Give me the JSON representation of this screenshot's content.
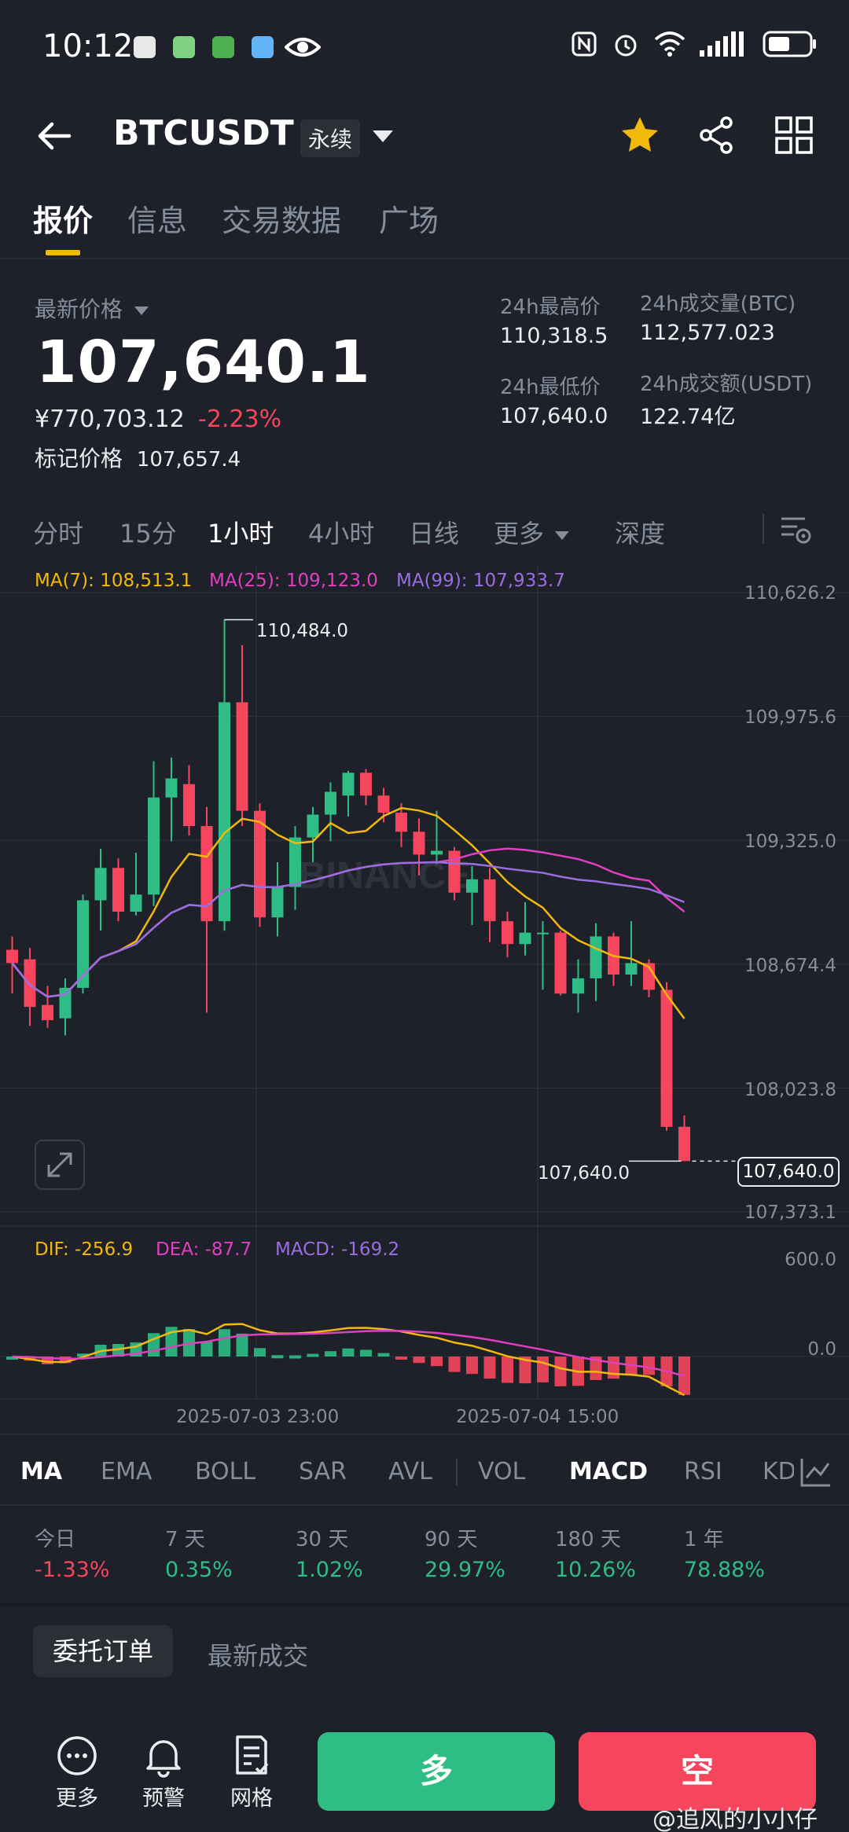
{
  "status_bar": {
    "time": "10:12"
  },
  "header": {
    "symbol": "BTCUSDT",
    "contract_type": "永续",
    "icons": [
      "back-icon",
      "star-icon",
      "share-icon",
      "grid-icon"
    ]
  },
  "main_tabs": [
    "报价",
    "信息",
    "交易数据",
    "广场"
  ],
  "price": {
    "last_price_label": "最新价格",
    "last_price": "107,640.1",
    "cny_price": "¥770,703.12",
    "change_pct": "-2.23%",
    "mark_label": "标记价格",
    "mark_price": "107,657.4"
  },
  "stats": {
    "high_label": "24h最高价",
    "high": "110,318.5",
    "low_label": "24h最低价",
    "low": "107,640.0",
    "vol_btc_label": "24h成交量(BTC)",
    "vol_btc": "112,577.023",
    "vol_usdt_label": "24h成交额(USDT)",
    "vol_usdt": "122.74亿"
  },
  "timeframes": [
    "分时",
    "15分",
    "1小时",
    "4小时",
    "日线",
    "更多",
    "深度"
  ],
  "active_timeframe": "1小时",
  "ma_legend": {
    "ma7": "MA(7): 108,513.1",
    "ma25": "MA(25): 109,123.0",
    "ma99": "MA(99): 107,933.7"
  },
  "colors": {
    "up": "#2ebd85",
    "down": "#f6465d",
    "ma7": "#f0b90b",
    "ma25": "#e040c0",
    "ma99": "#9a6ee0",
    "accent": "#f0b90b"
  },
  "chart_data": [
    {
      "type": "candlestick",
      "interval": "1h",
      "y_axis_ticks": [
        "110,626.2",
        "109,975.6",
        "109,325.0",
        "108,674.4",
        "108,023.8",
        "107,373.1"
      ],
      "ylim": [
        107373.1,
        110626.2
      ],
      "x_ticks": [
        "2025-07-03 23:00",
        "2025-07-04 15:00"
      ],
      "high_marker": "110,484.0",
      "low_marker": "107,640.0",
      "last_price_tag": "107,640.0",
      "candles": [
        {
          "o": 108750,
          "h": 108820,
          "l": 108520,
          "c": 108680
        },
        {
          "o": 108700,
          "h": 108760,
          "l": 108350,
          "c": 108450
        },
        {
          "o": 108460,
          "h": 108560,
          "l": 108340,
          "c": 108380
        },
        {
          "o": 108390,
          "h": 108600,
          "l": 108300,
          "c": 108550
        },
        {
          "o": 108550,
          "h": 109040,
          "l": 108520,
          "c": 109010
        },
        {
          "o": 109010,
          "h": 109280,
          "l": 108850,
          "c": 109180
        },
        {
          "o": 109180,
          "h": 109230,
          "l": 108900,
          "c": 108950
        },
        {
          "o": 108950,
          "h": 109260,
          "l": 108930,
          "c": 109040
        },
        {
          "o": 109040,
          "h": 109740,
          "l": 108980,
          "c": 109550
        },
        {
          "o": 109550,
          "h": 109760,
          "l": 109320,
          "c": 109650
        },
        {
          "o": 109620,
          "h": 109720,
          "l": 109350,
          "c": 109400
        },
        {
          "o": 109400,
          "h": 109500,
          "l": 108420,
          "c": 108900
        },
        {
          "o": 108900,
          "h": 110484,
          "l": 108850,
          "c": 110050
        },
        {
          "o": 110050,
          "h": 110350,
          "l": 109400,
          "c": 109480
        },
        {
          "o": 109480,
          "h": 109520,
          "l": 108870,
          "c": 108920
        },
        {
          "o": 108920,
          "h": 109210,
          "l": 108820,
          "c": 109080
        },
        {
          "o": 109080,
          "h": 109400,
          "l": 108960,
          "c": 109340
        },
        {
          "o": 109340,
          "h": 109500,
          "l": 109210,
          "c": 109460
        },
        {
          "o": 109460,
          "h": 109630,
          "l": 109320,
          "c": 109580
        },
        {
          "o": 109560,
          "h": 109690,
          "l": 109450,
          "c": 109680
        },
        {
          "o": 109680,
          "h": 109700,
          "l": 109510,
          "c": 109560
        },
        {
          "o": 109560,
          "h": 109600,
          "l": 109420,
          "c": 109470
        },
        {
          "o": 109470,
          "h": 109520,
          "l": 109290,
          "c": 109370
        },
        {
          "o": 109370,
          "h": 109440,
          "l": 109140,
          "c": 109250
        },
        {
          "o": 109250,
          "h": 109480,
          "l": 109200,
          "c": 109270
        },
        {
          "o": 109270,
          "h": 109290,
          "l": 109010,
          "c": 109050
        },
        {
          "o": 109050,
          "h": 109190,
          "l": 108880,
          "c": 109120
        },
        {
          "o": 109120,
          "h": 109180,
          "l": 108790,
          "c": 108900
        },
        {
          "o": 108900,
          "h": 108950,
          "l": 108710,
          "c": 108780
        },
        {
          "o": 108780,
          "h": 109000,
          "l": 108720,
          "c": 108840
        },
        {
          "o": 108840,
          "h": 108900,
          "l": 108540,
          "c": 108840
        },
        {
          "o": 108840,
          "h": 108850,
          "l": 108510,
          "c": 108520
        },
        {
          "o": 108520,
          "h": 108700,
          "l": 108420,
          "c": 108600
        },
        {
          "o": 108600,
          "h": 108890,
          "l": 108480,
          "c": 108820
        },
        {
          "o": 108820,
          "h": 108840,
          "l": 108560,
          "c": 108620
        },
        {
          "o": 108620,
          "h": 108900,
          "l": 108560,
          "c": 108680
        },
        {
          "o": 108680,
          "h": 108700,
          "l": 108500,
          "c": 108540
        },
        {
          "o": 108540,
          "h": 108580,
          "l": 107800,
          "c": 107820
        },
        {
          "o": 107820,
          "h": 107880,
          "l": 107640,
          "c": 107640
        }
      ]
    },
    {
      "type": "macd",
      "dif": "DIF: -256.9",
      "dea": "DEA: -87.7",
      "macd": "MACD: -169.2",
      "y_axis_ticks": [
        "600.0",
        "0.0"
      ]
    }
  ],
  "indicator_tabs": [
    "MA",
    "EMA",
    "BOLL",
    "SAR",
    "AVL",
    "VOL",
    "MACD",
    "RSI",
    "KD"
  ],
  "active_indicators": [
    "MA",
    "MACD"
  ],
  "performance": [
    {
      "label": "今日",
      "value": "-1.33%",
      "dir": "down"
    },
    {
      "label": "7 天",
      "value": "0.35%",
      "dir": "up"
    },
    {
      "label": "30 天",
      "value": "1.02%",
      "dir": "up"
    },
    {
      "label": "90 天",
      "value": "29.97%",
      "dir": "up"
    },
    {
      "label": "180 天",
      "value": "10.26%",
      "dir": "up"
    },
    {
      "label": "1 年",
      "value": "78.88%",
      "dir": "up"
    }
  ],
  "order_tabs": [
    "委托订单",
    "最新成交"
  ],
  "bottom_nav": [
    {
      "label": "更多",
      "icon": "more-icon"
    },
    {
      "label": "预警",
      "icon": "bell-icon"
    },
    {
      "label": "网格",
      "icon": "grid-doc-icon"
    }
  ],
  "actions": {
    "long": "多",
    "short": "空"
  },
  "watermark": "@追风的小小仔"
}
